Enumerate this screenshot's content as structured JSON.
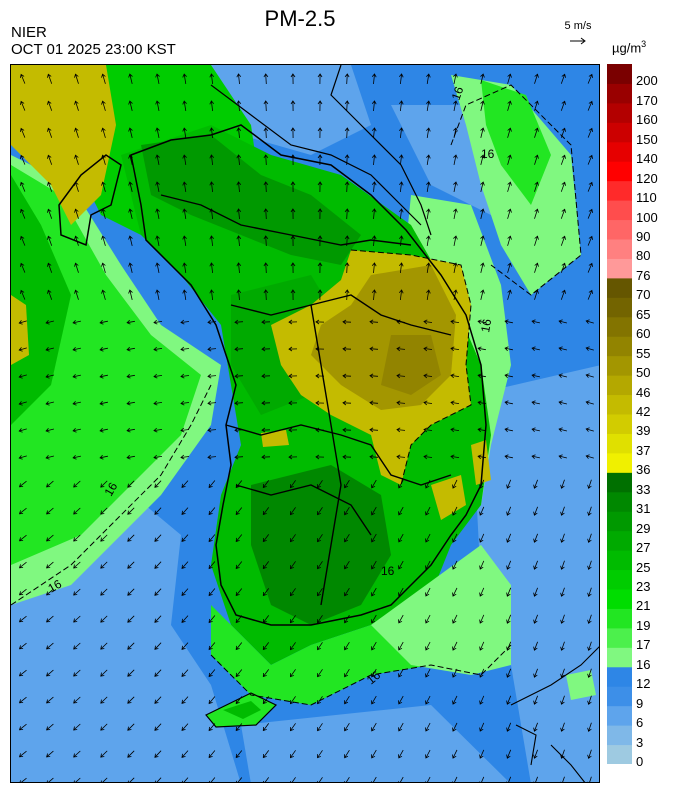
{
  "header": {
    "title": "PM-2.5",
    "organization": "NIER",
    "datetime": "OCT 01 2025 23:00 KST",
    "wind_reference": "5 m/s",
    "unit_base": "µg/m",
    "unit_exp": "3"
  },
  "map": {
    "contour_label": "16",
    "land_outline_color": "#000000",
    "ocean_color": "#2e86e6"
  },
  "colorbar": {
    "bins": [
      {
        "label": "0",
        "color": "#9ecae1"
      },
      {
        "label": "3",
        "color": "#7fb8e8"
      },
      {
        "label": "6",
        "color": "#5ea4ec"
      },
      {
        "label": "9",
        "color": "#3d8fe8"
      },
      {
        "label": "12",
        "color": "#2e86e6"
      },
      {
        "label": "16",
        "color": "#80f880"
      },
      {
        "label": "17",
        "color": "#4cf04c"
      },
      {
        "label": "19",
        "color": "#22e622"
      },
      {
        "label": "21",
        "color": "#00dd00"
      },
      {
        "label": "23",
        "color": "#00cc00"
      },
      {
        "label": "25",
        "color": "#00bb00"
      },
      {
        "label": "27",
        "color": "#00aa00"
      },
      {
        "label": "29",
        "color": "#009900"
      },
      {
        "label": "31",
        "color": "#008800"
      },
      {
        "label": "33",
        "color": "#007000"
      },
      {
        "label": "36",
        "color": "#f0f000"
      },
      {
        "label": "37",
        "color": "#e0e000"
      },
      {
        "label": "39",
        "color": "#d2cc00"
      },
      {
        "label": "42",
        "color": "#c4bb00"
      },
      {
        "label": "46",
        "color": "#b4a800"
      },
      {
        "label": "50",
        "color": "#a39600"
      },
      {
        "label": "55",
        "color": "#928400"
      },
      {
        "label": "60",
        "color": "#837400"
      },
      {
        "label": "65",
        "color": "#736400"
      },
      {
        "label": "70",
        "color": "#655600"
      },
      {
        "label": "76",
        "color": "#ff9999"
      },
      {
        "label": "80",
        "color": "#ff8080"
      },
      {
        "label": "90",
        "color": "#ff6666"
      },
      {
        "label": "100",
        "color": "#ff4d4d"
      },
      {
        "label": "110",
        "color": "#ff2a2a"
      },
      {
        "label": "120",
        "color": "#ff0000"
      },
      {
        "label": "140",
        "color": "#e60000"
      },
      {
        "label": "150",
        "color": "#cc0000"
      },
      {
        "label": "160",
        "color": "#b30000"
      },
      {
        "label": "170",
        "color": "#990000"
      },
      {
        "label": "200",
        "color": "#7a0000"
      }
    ]
  }
}
